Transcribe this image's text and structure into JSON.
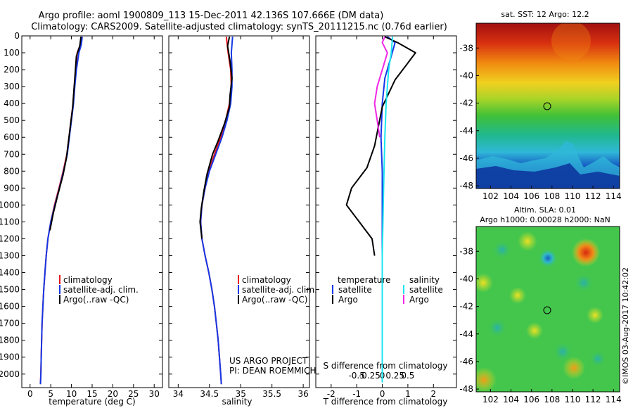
{
  "title": {
    "line1": "Argo profile: aoml 1900809_113 15-Dec-2011 42.136S 107.666E (DM data)",
    "line2": "Climatology: CARS2009. Satellite-adjusted climatology: synTS_20111215.nc (0.76d earlier)"
  },
  "side_label": "©IMOS 03-Aug-2017 10:42:02",
  "colors": {
    "climatology": "#e8141e",
    "satellite": "#1438e6",
    "argo": "#000000",
    "salinity_satellite": "#18e6f0",
    "salinity_argo": "#f028e6"
  },
  "chart_data": [
    {
      "type": "line",
      "id": "temperature",
      "xlabel": "temperature (deg C)",
      "xlim": [
        -2,
        32
      ],
      "xticks": [
        0,
        5,
        10,
        15,
        20,
        25,
        30
      ],
      "ylim": [
        2080,
        0
      ],
      "yticks": [
        0,
        100,
        200,
        300,
        400,
        500,
        600,
        700,
        800,
        900,
        1000,
        1100,
        1200,
        1300,
        1400,
        1500,
        1600,
        1700,
        1800,
        1900,
        2000
      ],
      "legend": [
        "climatology",
        "satellite-adj. clim.",
        "Argo(..raw -QC)"
      ],
      "series": [
        {
          "name": "climatology",
          "color": "climatology",
          "points": [
            [
              12.4,
              5
            ],
            [
              12.2,
              50
            ],
            [
              11.4,
              100
            ],
            [
              11.0,
              200
            ],
            [
              10.7,
              300
            ],
            [
              10.4,
              400
            ],
            [
              9.9,
              500
            ],
            [
              9.4,
              600
            ],
            [
              8.9,
              700
            ],
            [
              8.0,
              800
            ],
            [
              7.0,
              900
            ],
            [
              5.9,
              1000
            ],
            [
              5.0,
              1100
            ],
            [
              4.3,
              1200
            ],
            [
              3.9,
              1300
            ],
            [
              3.6,
              1400
            ],
            [
              3.3,
              1500
            ],
            [
              3.1,
              1600
            ],
            [
              2.9,
              1700
            ],
            [
              2.8,
              1800
            ],
            [
              2.7,
              1900
            ],
            [
              2.6,
              2000
            ],
            [
              2.5,
              2060
            ]
          ]
        },
        {
          "name": "satellite-adj. clim.",
          "color": "satellite",
          "points": [
            [
              12.6,
              5
            ],
            [
              12.4,
              50
            ],
            [
              11.8,
              100
            ],
            [
              11.2,
              200
            ],
            [
              10.8,
              300
            ],
            [
              10.5,
              400
            ],
            [
              10.0,
              500
            ],
            [
              9.5,
              600
            ],
            [
              9.0,
              700
            ],
            [
              8.1,
              800
            ],
            [
              7.1,
              900
            ],
            [
              6.0,
              1000
            ],
            [
              5.0,
              1100
            ],
            [
              4.3,
              1200
            ],
            [
              3.9,
              1300
            ],
            [
              3.6,
              1400
            ],
            [
              3.3,
              1500
            ],
            [
              3.1,
              1600
            ],
            [
              2.9,
              1700
            ],
            [
              2.8,
              1800
            ],
            [
              2.7,
              1900
            ],
            [
              2.6,
              2000
            ],
            [
              2.5,
              2060
            ]
          ]
        },
        {
          "name": "Argo(..raw -QC)",
          "color": "argo",
          "points": [
            [
              12.3,
              5
            ],
            [
              12.0,
              60
            ],
            [
              11.2,
              120
            ],
            [
              10.9,
              220
            ],
            [
              10.6,
              320
            ],
            [
              10.3,
              420
            ],
            [
              9.8,
              520
            ],
            [
              9.3,
              620
            ],
            [
              8.8,
              720
            ],
            [
              8.0,
              820
            ],
            [
              6.6,
              950
            ],
            [
              5.6,
              1050
            ],
            [
              4.8,
              1150
            ]
          ]
        }
      ]
    },
    {
      "type": "line",
      "id": "salinity",
      "xlabel": "salinity",
      "xlim": [
        33.85,
        36.1
      ],
      "xticks": [
        34,
        34.5,
        35,
        35.5,
        36
      ],
      "ylim": [
        2080,
        0
      ],
      "legend": [
        "climatology",
        "satellite-adj. clim.",
        "Argo(..raw -QC)"
      ],
      "annotation": [
        "US ARGO PROJECT",
        "PI: DEAN ROEMMICH"
      ],
      "series": [
        {
          "name": "climatology",
          "color": "climatology",
          "points": [
            [
              34.77,
              5
            ],
            [
              34.8,
              100
            ],
            [
              34.84,
              200
            ],
            [
              34.85,
              300
            ],
            [
              34.82,
              400
            ],
            [
              34.76,
              500
            ],
            [
              34.68,
              600
            ],
            [
              34.58,
              700
            ],
            [
              34.49,
              800
            ],
            [
              34.43,
              900
            ],
            [
              34.38,
              1000
            ],
            [
              34.36,
              1100
            ],
            [
              34.38,
              1200
            ],
            [
              34.43,
              1300
            ],
            [
              34.49,
              1400
            ],
            [
              34.54,
              1500
            ],
            [
              34.58,
              1600
            ],
            [
              34.61,
              1700
            ],
            [
              34.64,
              1800
            ],
            [
              34.66,
              1900
            ],
            [
              34.68,
              2000
            ],
            [
              34.69,
              2060
            ]
          ]
        },
        {
          "name": "satellite-adj. clim.",
          "color": "satellite",
          "points": [
            [
              34.87,
              5
            ],
            [
              34.85,
              100
            ],
            [
              34.86,
              200
            ],
            [
              34.86,
              300
            ],
            [
              34.84,
              400
            ],
            [
              34.78,
              500
            ],
            [
              34.7,
              600
            ],
            [
              34.6,
              700
            ],
            [
              34.5,
              800
            ],
            [
              34.43,
              900
            ],
            [
              34.38,
              1000
            ],
            [
              34.36,
              1100
            ],
            [
              34.38,
              1200
            ],
            [
              34.43,
              1300
            ],
            [
              34.49,
              1400
            ],
            [
              34.54,
              1500
            ],
            [
              34.58,
              1600
            ],
            [
              34.61,
              1700
            ],
            [
              34.64,
              1800
            ],
            [
              34.66,
              1900
            ],
            [
              34.68,
              2000
            ],
            [
              34.69,
              2060
            ]
          ]
        },
        {
          "name": "Argo(..raw -QC)",
          "color": "argo",
          "points": [
            [
              34.82,
              5
            ],
            [
              34.79,
              60
            ],
            [
              34.83,
              150
            ],
            [
              34.86,
              250
            ],
            [
              34.83,
              350
            ],
            [
              34.82,
              420
            ],
            [
              34.74,
              520
            ],
            [
              34.64,
              620
            ],
            [
              34.55,
              700
            ],
            [
              34.46,
              820
            ],
            [
              34.41,
              920
            ],
            [
              34.37,
              1020
            ],
            [
              34.35,
              1100
            ],
            [
              34.38,
              1200
            ]
          ]
        }
      ]
    },
    {
      "type": "line",
      "id": "differences",
      "xlabel": "T difference from climatology",
      "xlabel_top": "S difference from climatology",
      "xlim": [
        -2.6,
        2.9
      ],
      "xticks": [
        -2,
        -1,
        0,
        1,
        2
      ],
      "xticks_top": [
        "-0.5",
        "-0.25",
        "0",
        "0.25",
        "0.5"
      ],
      "ylim": [
        2080,
        0
      ],
      "legend_left": {
        "title": "temperature",
        "items": [
          "satellite",
          "Argo"
        ]
      },
      "legend_right": {
        "title": "salinity",
        "items": [
          "satellite",
          "Argo"
        ]
      },
      "series": [
        {
          "name": "temperature satellite",
          "color": "satellite",
          "points": [
            [
              0.2,
              5
            ],
            [
              0.5,
              40
            ],
            [
              0.35,
              120
            ],
            [
              0.1,
              250
            ],
            [
              0.0,
              400
            ],
            [
              -0.05,
              600
            ],
            [
              0.0,
              800
            ],
            [
              0.0,
              1000
            ],
            [
              0.0,
              1300
            ],
            [
              0.0,
              1600
            ],
            [
              0.0,
              1850
            ]
          ]
        },
        {
          "name": "temperature Argo",
          "color": "argo",
          "points": [
            [
              0.1,
              5
            ],
            [
              0.6,
              40
            ],
            [
              1.3,
              100
            ],
            [
              0.9,
              180
            ],
            [
              0.5,
              260
            ],
            [
              0.0,
              420
            ],
            [
              -0.3,
              650
            ],
            [
              -0.6,
              780
            ],
            [
              -1.2,
              900
            ],
            [
              -1.4,
              1000
            ],
            [
              -0.9,
              1100
            ],
            [
              -0.4,
              1200
            ],
            [
              -0.3,
              1300
            ]
          ]
        },
        {
          "name": "salinity satellite",
          "color": "salinity_satellite",
          "points": [
            [
              0.4,
              5
            ],
            [
              0.35,
              100
            ],
            [
              0.25,
              200
            ],
            [
              0.15,
              400
            ],
            [
              0.1,
              600
            ],
            [
              0.05,
              900
            ],
            [
              0.0,
              1300
            ],
            [
              0.0,
              2050
            ]
          ]
        },
        {
          "name": "salinity Argo",
          "color": "salinity_argo",
          "points": [
            [
              0.1,
              5
            ],
            [
              0.0,
              40
            ],
            [
              0.2,
              100
            ],
            [
              -0.2,
              300
            ],
            [
              -0.3,
              400
            ],
            [
              -0.2,
              500
            ],
            [
              -0.1,
              600
            ]
          ]
        }
      ]
    },
    {
      "type": "heatmap",
      "id": "sst",
      "title": "sat. SST: 12 Argo: 12.2",
      "xticks": [
        102,
        104,
        106,
        108,
        110,
        112,
        114
      ],
      "yticks": [
        -38,
        -40,
        -42,
        -44,
        -46,
        -48
      ],
      "xlim": [
        100.6,
        114.6
      ],
      "ylim": [
        -48.2,
        -36.2
      ],
      "marker": [
        107.666,
        -42.136
      ]
    },
    {
      "type": "heatmap",
      "id": "sla",
      "title": "Altim. SLA: 0.01",
      "subtitle": "Argo h1000: 0.00028 h2000: NaN",
      "xticks": [
        102,
        104,
        106,
        108,
        110,
        112,
        114
      ],
      "yticks": [
        -38,
        -40,
        -42,
        -44,
        -46,
        -48
      ],
      "xlim": [
        100.6,
        114.6
      ],
      "ylim": [
        -48.2,
        -36.2
      ],
      "marker": [
        107.666,
        -42.136
      ]
    }
  ]
}
